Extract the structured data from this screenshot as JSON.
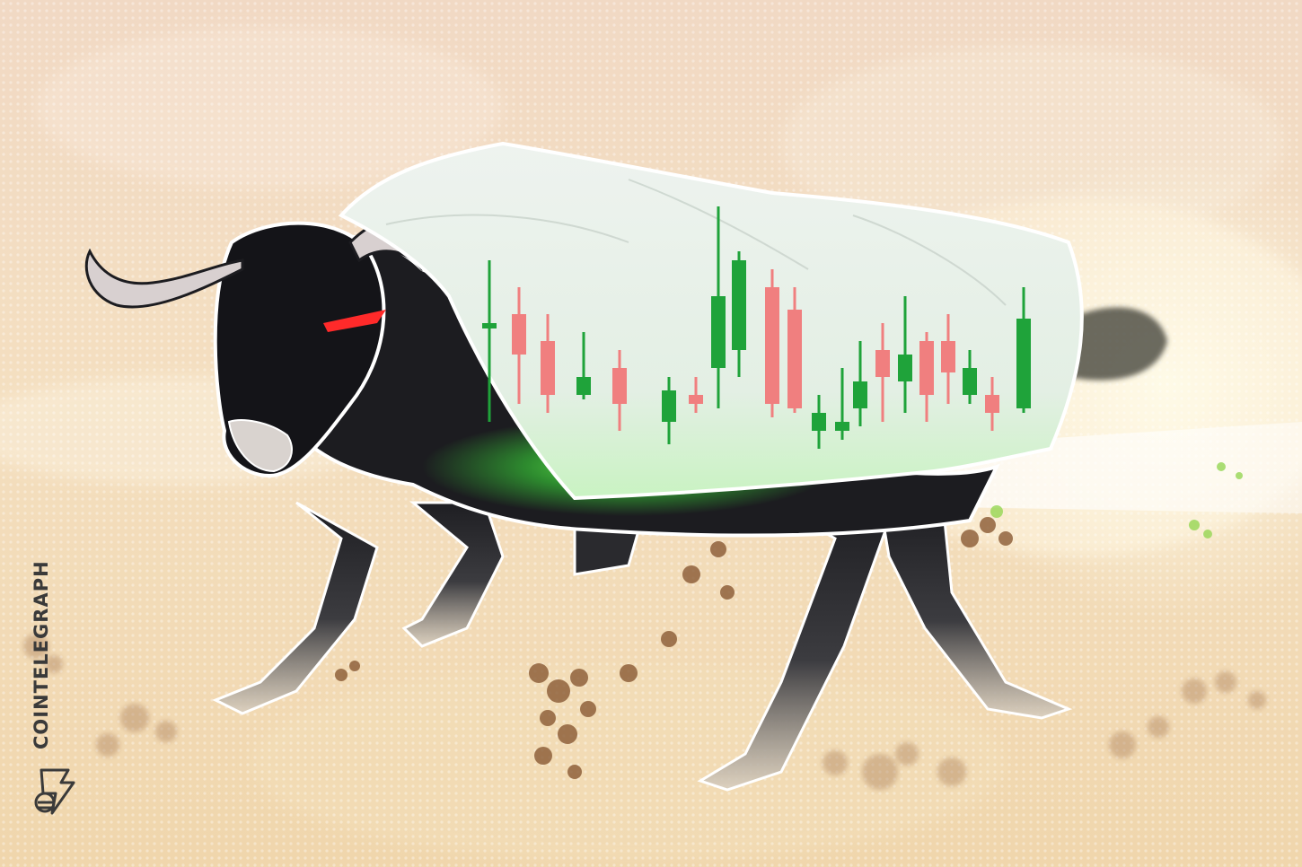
{
  "watermark": {
    "brand_text": "COINTELEGRAPH",
    "logo_icon": "cointelegraph-logo-icon"
  },
  "colors": {
    "background": "#f2dcc0",
    "bull_body": "#1c1c20",
    "cloth": "#e9f1ea",
    "candle_green": "#1fa33a",
    "candle_red": "#f07f7f",
    "glow": "#5cff4a",
    "dust": "#8a5a34",
    "eye": "#ff2a2a"
  },
  "candlestick_series": [
    {
      "direction": "up"
    },
    {
      "direction": "down"
    },
    {
      "direction": "down"
    },
    {
      "direction": "up"
    },
    {
      "direction": "down"
    },
    {
      "direction": "up"
    },
    {
      "direction": "down"
    },
    {
      "direction": "up"
    },
    {
      "direction": "up"
    },
    {
      "direction": "up"
    },
    {
      "direction": "down"
    },
    {
      "direction": "down"
    },
    {
      "direction": "up"
    },
    {
      "direction": "up"
    },
    {
      "direction": "up"
    },
    {
      "direction": "down"
    },
    {
      "direction": "up"
    },
    {
      "direction": "down"
    },
    {
      "direction": "down"
    },
    {
      "direction": "up"
    },
    {
      "direction": "down"
    },
    {
      "direction": "up"
    }
  ]
}
